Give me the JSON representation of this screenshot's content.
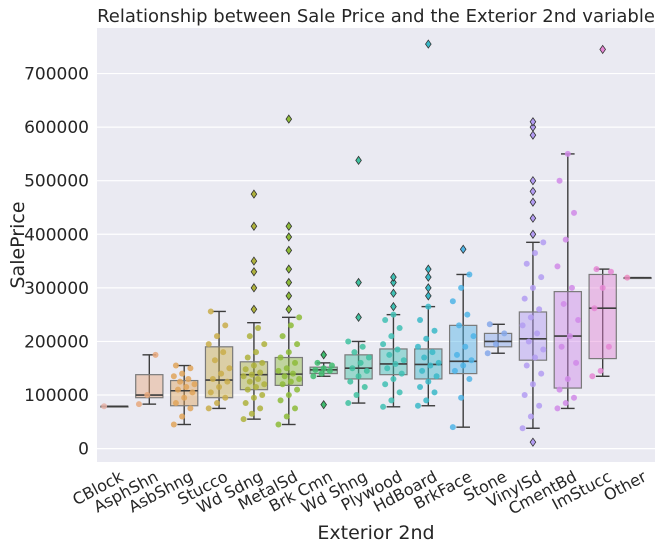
{
  "chart_data": {
    "type": "box",
    "title": "Relationship between Sale Price and the Exterior 2nd variable",
    "xlabel": "Exterior 2nd",
    "ylabel": "SalePrice",
    "ylim": [
      -25000,
      785000
    ],
    "yticks": [
      0,
      100000,
      200000,
      300000,
      400000,
      500000,
      600000,
      700000
    ],
    "ytick_labels": [
      "0",
      "100000",
      "200000",
      "300000",
      "400000",
      "500000",
      "600000",
      "700000"
    ],
    "grid": true,
    "categories": [
      "CBlock",
      "AsphShn",
      "AsbShng",
      "Stucco",
      "Wd Sdng",
      "MetalSd",
      "Brk Cmn",
      "Wd Shng",
      "Plywood",
      "HdBoard",
      "BrkFace",
      "Stone",
      "VinylSd",
      "CmentBd",
      "ImStucc",
      "Other"
    ],
    "colors": [
      "#e6b3a8",
      "#e8a87c",
      "#e0a55a",
      "#c9ad4a",
      "#aeb13c",
      "#8dbb38",
      "#3fbb6e",
      "#3fc1a0",
      "#3fc0b4",
      "#3ab9c8",
      "#4fb4e6",
      "#86a8ea",
      "#b39cf2",
      "#d08ae8",
      "#e586d4",
      "#ec8bbf"
    ],
    "boxes": [
      {
        "category": "CBlock",
        "q1": 79000,
        "median": 79000,
        "q3": 79000,
        "whisker_low": 79000,
        "whisker_high": 79000,
        "outliers": [],
        "points": [
          79000
        ]
      },
      {
        "category": "AsphShn",
        "q1": 95000,
        "median": 100000,
        "q3": 138000,
        "whisker_low": 83000,
        "whisker_high": 175000,
        "outliers": [],
        "points": [
          83000,
          100000,
          175000
        ]
      },
      {
        "category": "AsbShng",
        "q1": 80000,
        "median": 108000,
        "q3": 127000,
        "whisker_low": 45000,
        "whisker_high": 155000,
        "outliers": [],
        "points": [
          45000,
          60000,
          75000,
          85000,
          95000,
          105000,
          110000,
          115000,
          120000,
          125000,
          130000,
          135000,
          140000,
          150000,
          155000
        ]
      },
      {
        "category": "Stucco",
        "q1": 95000,
        "median": 128000,
        "q3": 190000,
        "whisker_low": 75000,
        "whisker_high": 256000,
        "outliers": [],
        "points": [
          75000,
          85000,
          95000,
          105000,
          115000,
          125000,
          130000,
          140000,
          150000,
          165000,
          180000,
          195000,
          210000,
          230000,
          256000
        ]
      },
      {
        "category": "Wd Sdng",
        "q1": 110000,
        "median": 138000,
        "q3": 162000,
        "whisker_low": 55000,
        "whisker_high": 235000,
        "outliers": [
          260000,
          300000,
          330000,
          350000,
          415000,
          475000
        ],
        "points": [
          55000,
          65000,
          75000,
          85000,
          95000,
          100000,
          110000,
          115000,
          120000,
          125000,
          130000,
          135000,
          138000,
          142000,
          148000,
          155000,
          160000,
          170000,
          180000,
          195000,
          210000,
          225000
        ]
      },
      {
        "category": "MetalSd",
        "q1": 118000,
        "median": 139000,
        "q3": 170000,
        "whisker_low": 45000,
        "whisker_high": 245000,
        "outliers": [
          260000,
          285000,
          310000,
          335000,
          370000,
          395000,
          415000,
          615000
        ],
        "points": [
          45000,
          60000,
          75000,
          90000,
          100000,
          110000,
          120000,
          125000,
          130000,
          135000,
          140000,
          145000,
          150000,
          160000,
          170000,
          180000,
          195000,
          210000,
          230000,
          245000
        ]
      },
      {
        "category": "Brk Cmn",
        "q1": 140000,
        "median": 147000,
        "q3": 152000,
        "whisker_low": 135000,
        "whisker_high": 160000,
        "outliers": [
          82000,
          175000
        ],
        "points": [
          135000,
          140000,
          145000,
          147000,
          150000,
          155000,
          160000
        ]
      },
      {
        "category": "Wd Shng",
        "q1": 130000,
        "median": 150000,
        "q3": 175000,
        "whisker_low": 85000,
        "whisker_high": 200000,
        "outliers": [
          245000,
          310000,
          538000
        ],
        "points": [
          85000,
          100000,
          115000,
          125000,
          135000,
          145000,
          150000,
          160000,
          170000,
          180000,
          190000,
          200000
        ]
      },
      {
        "category": "Plywood",
        "q1": 138000,
        "median": 158000,
        "q3": 186000,
        "whisker_low": 78000,
        "whisker_high": 250000,
        "outliers": [
          265000,
          290000,
          310000,
          320000
        ],
        "points": [
          78000,
          90000,
          105000,
          120000,
          130000,
          140000,
          150000,
          158000,
          165000,
          175000,
          185000,
          195000,
          210000,
          225000,
          240000,
          250000
        ]
      },
      {
        "category": "HdBoard",
        "q1": 130000,
        "median": 157000,
        "q3": 186000,
        "whisker_low": 80000,
        "whisker_high": 265000,
        "outliers": [
          285000,
          300000,
          320000,
          335000,
          755000
        ],
        "points": [
          80000,
          90000,
          105000,
          115000,
          125000,
          135000,
          145000,
          155000,
          160000,
          170000,
          180000,
          190000,
          205000,
          220000,
          240000,
          265000
        ]
      },
      {
        "category": "BrkFace",
        "q1": 140000,
        "median": 163000,
        "q3": 230000,
        "whisker_low": 40000,
        "whisker_high": 325000,
        "outliers": [
          372000
        ],
        "points": [
          40000,
          95000,
          130000,
          145000,
          155000,
          165000,
          175000,
          190000,
          210000,
          230000,
          250000,
          275000,
          300000,
          325000
        ]
      },
      {
        "category": "Stone",
        "q1": 190000,
        "median": 200000,
        "q3": 215000,
        "whisker_low": 178000,
        "whisker_high": 232000,
        "outliers": [],
        "points": [
          178000,
          195000,
          215000,
          232000
        ]
      },
      {
        "category": "VinylSd",
        "q1": 165000,
        "median": 205000,
        "q3": 255000,
        "whisker_low": 38000,
        "whisker_high": 385000,
        "outliers": [
          12000,
          400000,
          430000,
          460000,
          480000,
          500000,
          585000,
          600000,
          610000
        ],
        "points": [
          38000,
          60000,
          80000,
          100000,
          120000,
          140000,
          155000,
          170000,
          185000,
          200000,
          215000,
          230000,
          245000,
          260000,
          280000,
          300000,
          320000,
          345000,
          365000,
          385000
        ]
      },
      {
        "category": "CmentBd",
        "q1": 113000,
        "median": 210000,
        "q3": 293000,
        "whisker_low": 75000,
        "whisker_high": 550000,
        "outliers": [],
        "points": [
          75000,
          85000,
          95000,
          110000,
          130000,
          160000,
          190000,
          210000,
          240000,
          270000,
          300000,
          340000,
          390000,
          440000,
          500000,
          550000
        ]
      },
      {
        "category": "ImStucc",
        "q1": 168000,
        "median": 262000,
        "q3": 325000,
        "whisker_low": 135000,
        "whisker_high": 335000,
        "outliers": [
          745000
        ],
        "points": [
          135000,
          145000,
          190000,
          262000,
          300000,
          330000,
          335000
        ]
      },
      {
        "category": "Other",
        "q1": 319000,
        "median": 319000,
        "q3": 319000,
        "whisker_low": 319000,
        "whisker_high": 319000,
        "outliers": [],
        "points": [
          319000
        ]
      }
    ]
  }
}
